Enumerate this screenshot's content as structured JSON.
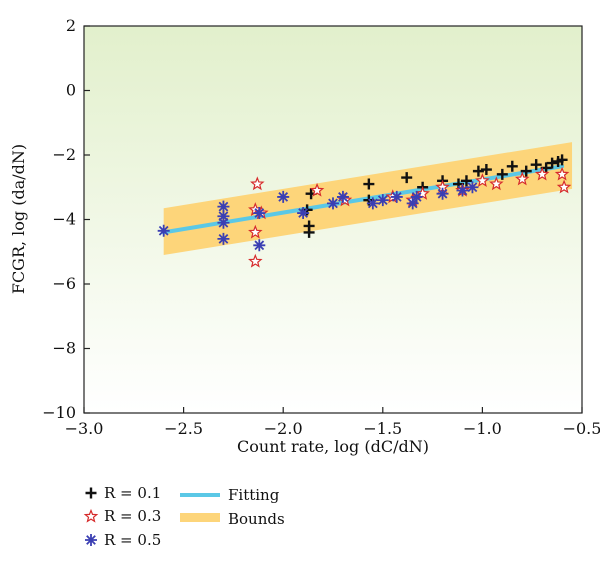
{
  "chart_data": {
    "type": "scatter",
    "xlabel": "Count rate, log (dC/dN)",
    "ylabel": "FCGR, log (da/dN)",
    "xlim": [
      -3.0,
      -0.5
    ],
    "ylim": [
      -10,
      2
    ],
    "xticks": [
      -3.0,
      -2.5,
      -2.0,
      -1.5,
      -1.0,
      -0.5
    ],
    "xtick_labels": [
      "−3.0",
      "−2.5",
      "−2.0",
      "−1.5",
      "−1.0",
      "−0.5"
    ],
    "yticks": [
      2,
      0,
      -2,
      -4,
      -6,
      -8,
      -10
    ],
    "ytick_labels": [
      "2",
      "0",
      "−2",
      "−4",
      "−6",
      "−8",
      "−10"
    ],
    "grid": false,
    "legend_position": "below-left",
    "series": [
      {
        "name": "R = 0.1",
        "legend_label": "R = 0.1",
        "marker": "plus",
        "color": "#111111",
        "x": [
          -1.87,
          -1.87,
          -1.88,
          -1.86,
          -1.57,
          -1.57,
          -1.38,
          -1.3,
          -1.2,
          -1.12,
          -1.08,
          -1.02,
          -0.98,
          -0.9,
          -0.85,
          -0.78,
          -0.73,
          -0.68,
          -0.65,
          -0.62,
          -0.6
        ],
        "y": [
          -4.4,
          -4.2,
          -3.7,
          -3.2,
          -2.9,
          -3.4,
          -2.7,
          -3.0,
          -2.8,
          -2.9,
          -2.8,
          -2.5,
          -2.45,
          -2.6,
          -2.35,
          -2.5,
          -2.3,
          -2.4,
          -2.25,
          -2.2,
          -2.15
        ]
      },
      {
        "name": "R = 0.3",
        "legend_label": "R = 0.3",
        "marker": "star",
        "color": "#d62b2b",
        "x": [
          -2.14,
          -2.14,
          -2.14,
          -2.13,
          -2.11,
          -1.83,
          -1.69,
          -1.45,
          -1.35,
          -1.3,
          -1.2,
          -1.1,
          -1.0,
          -0.93,
          -0.8,
          -0.7,
          -0.6,
          -0.59
        ],
        "y": [
          -5.3,
          -4.4,
          -3.7,
          -2.9,
          -3.8,
          -3.1,
          -3.4,
          -3.3,
          -3.4,
          -3.2,
          -3.0,
          -3.1,
          -2.8,
          -2.9,
          -2.75,
          -2.6,
          -2.6,
          -3.0
        ]
      },
      {
        "name": "R = 0.5",
        "legend_label": "R = 0.5",
        "marker": "asterisk",
        "color": "#3b3fb3",
        "x": [
          -2.6,
          -2.3,
          -2.3,
          -2.3,
          -2.3,
          -2.12,
          -2.12,
          -2.0,
          -1.9,
          -1.75,
          -1.7,
          -1.55,
          -1.5,
          -1.43,
          -1.35,
          -1.33,
          -1.2,
          -1.1,
          -1.05
        ],
        "y": [
          -4.35,
          -4.6,
          -4.1,
          -3.9,
          -3.6,
          -4.8,
          -3.8,
          -3.3,
          -3.8,
          -3.5,
          -3.3,
          -3.5,
          -3.4,
          -3.3,
          -3.5,
          -3.3,
          -3.2,
          -3.1,
          -3.0
        ]
      }
    ],
    "fitting": {
      "name": "Fitting",
      "legend_label": "Fitting",
      "color": "#5bc8e6",
      "x": [
        -2.6,
        -0.6
      ],
      "y": [
        -4.4,
        -2.35
      ]
    },
    "bounds": {
      "name": "Bounds",
      "legend_label": "Bounds",
      "color": "#fdd57a",
      "x": [
        -2.6,
        -0.55
      ],
      "upper": [
        -3.65,
        -1.6
      ],
      "lower": [
        -5.1,
        -3.05
      ]
    },
    "background_gradient": [
      "#e2f0cc",
      "#ffffff"
    ]
  }
}
